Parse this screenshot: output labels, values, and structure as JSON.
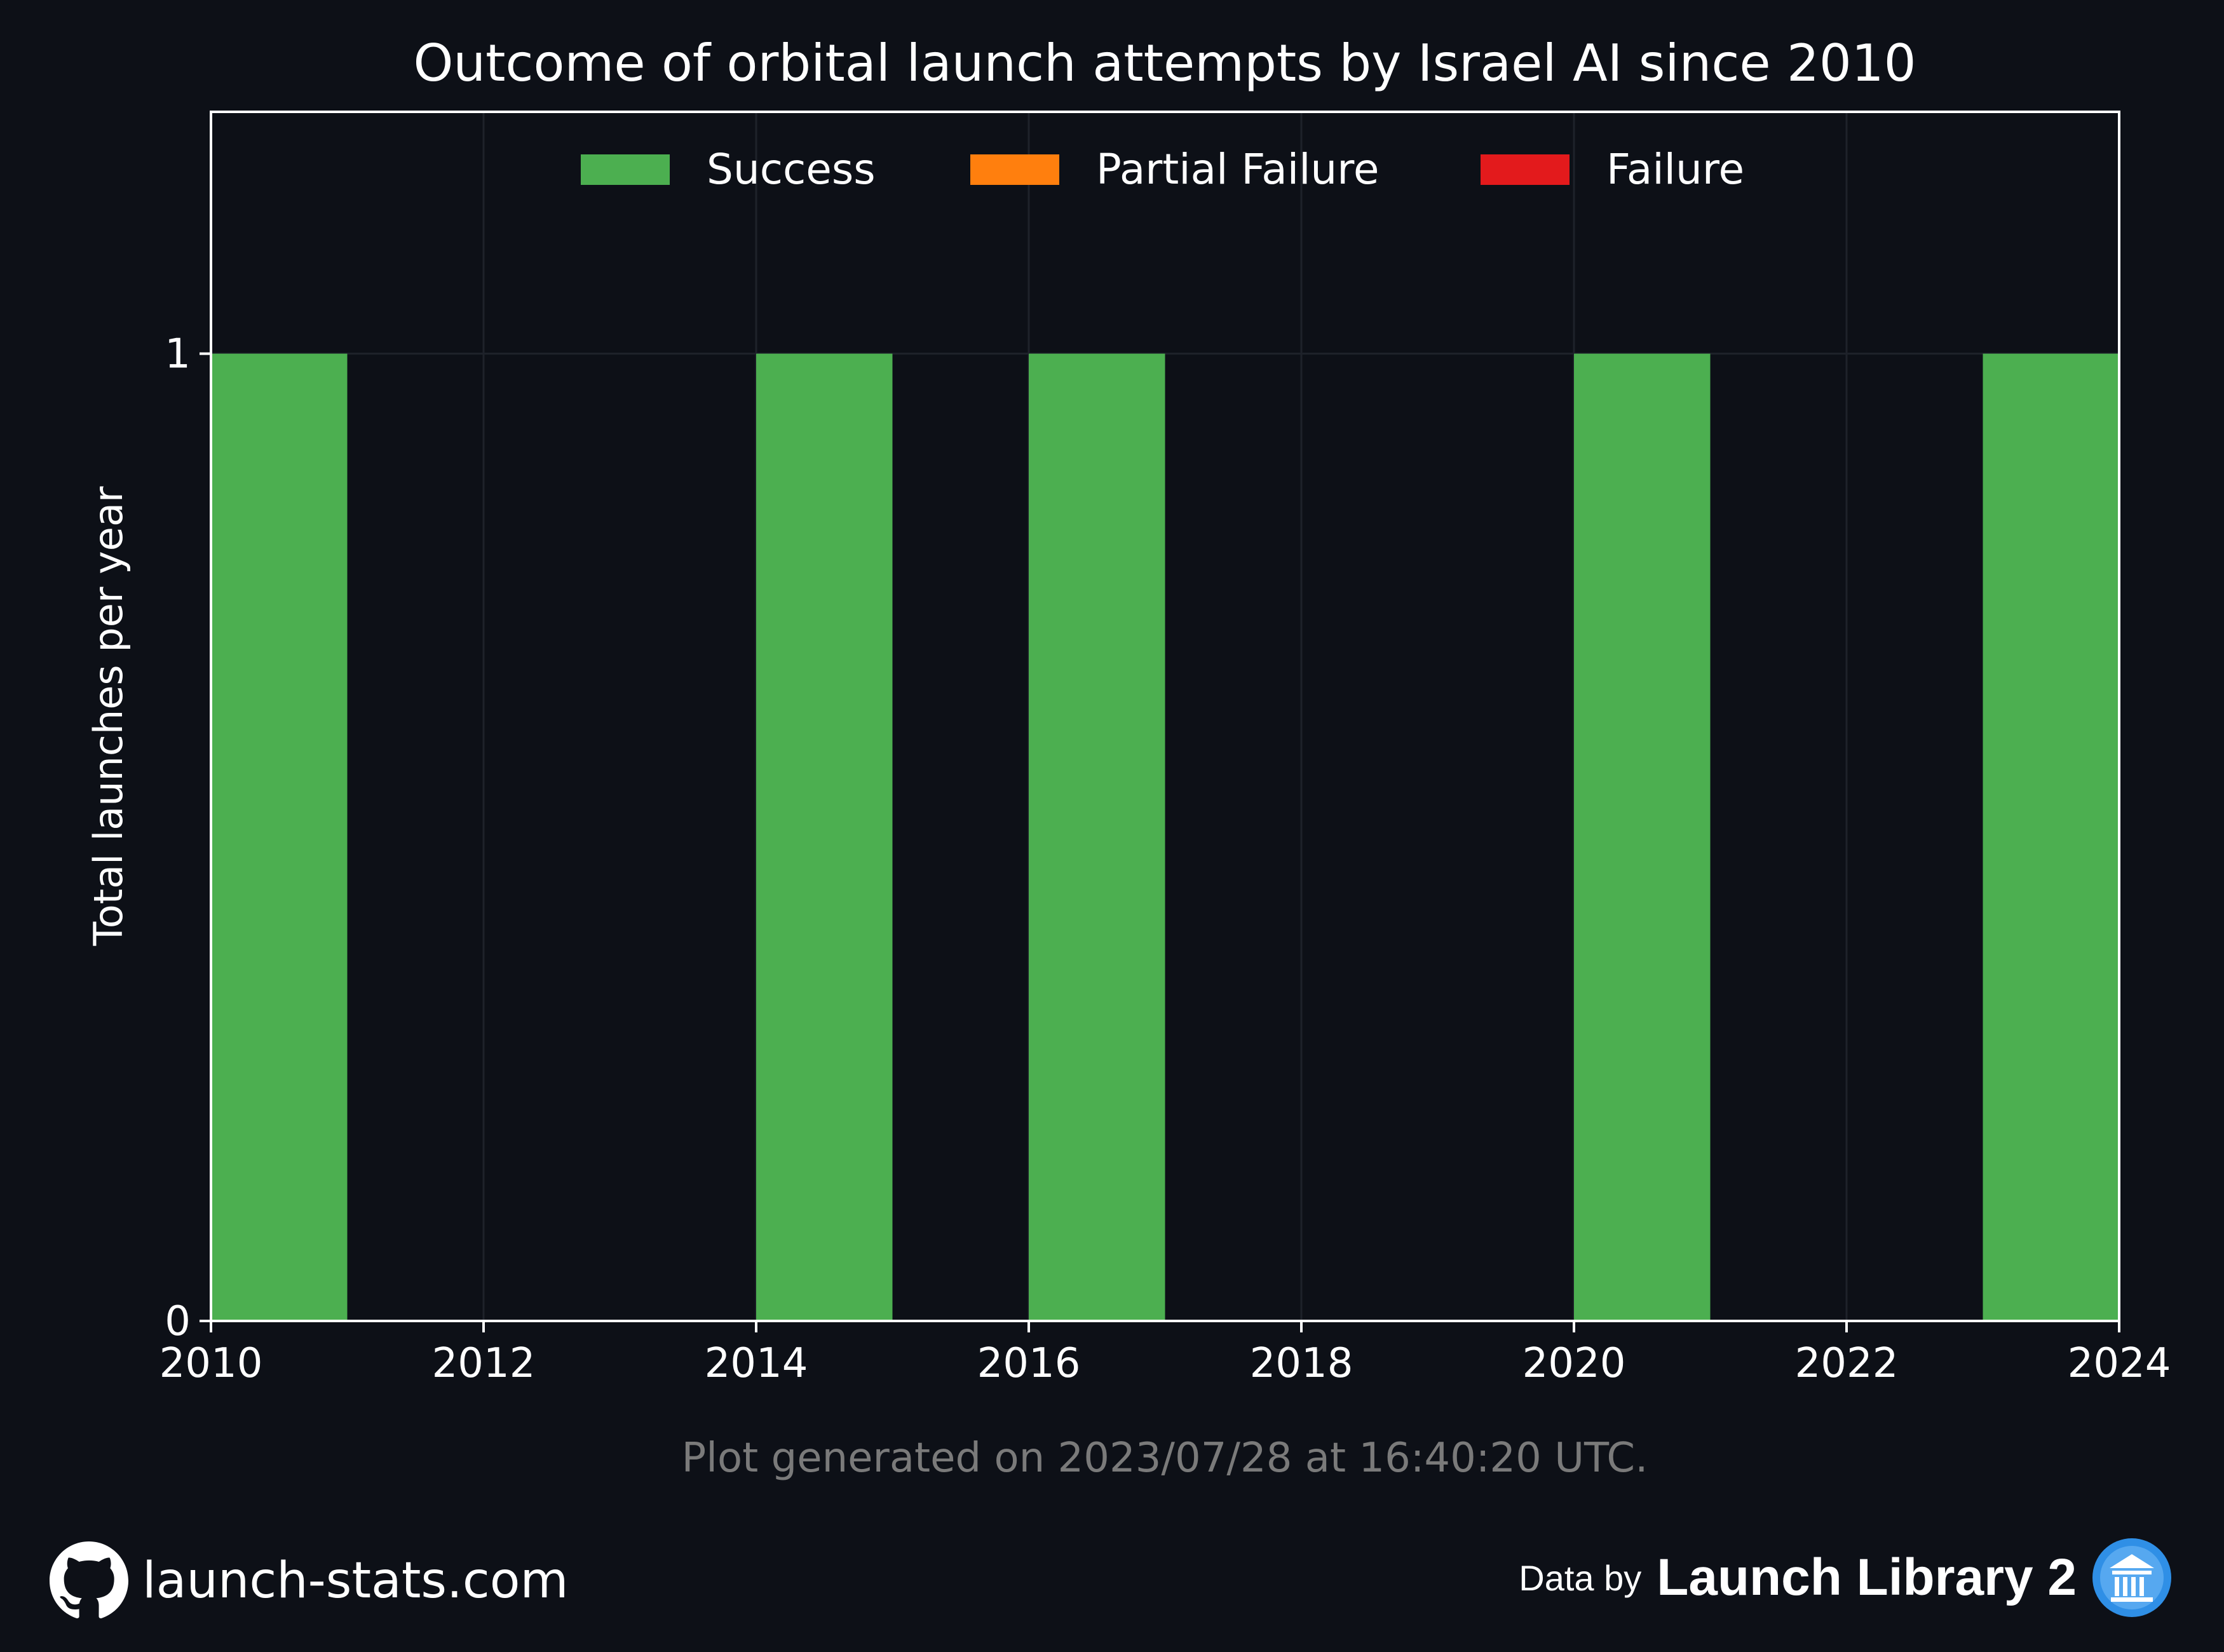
{
  "chart_data": {
    "type": "bar",
    "title": "Outcome of orbital launch attempts by Israel AI since 2010",
    "xlabel": "",
    "ylabel": "Total launches per year",
    "xlim": [
      2010,
      2024
    ],
    "ylim": [
      0,
      1.25
    ],
    "x_ticks": [
      "2010",
      "2012",
      "2014",
      "2016",
      "2018",
      "2020",
      "2022",
      "2024"
    ],
    "y_ticks": [
      "0",
      "1"
    ],
    "x": [
      2010,
      2014,
      2016,
      2020,
      2023
    ],
    "series": [
      {
        "name": "Success",
        "color": "#4caf50",
        "values": [
          1,
          1,
          1,
          1,
          1
        ]
      },
      {
        "name": "Partial Failure",
        "color": "#ff7f0e",
        "values": [
          0,
          0,
          0,
          0,
          0
        ]
      },
      {
        "name": "Failure",
        "color": "#e31a1c",
        "values": [
          0,
          0,
          0,
          0,
          0
        ]
      }
    ],
    "legend_position": "top-center",
    "grid": true
  },
  "footnote": "Plot generated on 2023/07/28 at 16:40:20 UTC.",
  "footer": {
    "site": "launch-stats.com",
    "data_by": "Data by",
    "source": "Launch Library 2",
    "site_icon": "github-icon",
    "source_icon": "launch-library-icon"
  },
  "colors": {
    "background": "#0d1017",
    "axis": "#ffffff",
    "grid": "#1e222a",
    "footnote": "#7a7a7a"
  }
}
